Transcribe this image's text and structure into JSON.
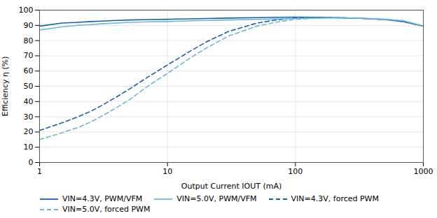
{
  "chart_data": {
    "type": "line",
    "xlabel": "Output Current IOUT (mA)",
    "ylabel": "Efficiency η (%)",
    "x": [
      1,
      1.5,
      2,
      2.5,
      3,
      4,
      5,
      7,
      10,
      15,
      20,
      30,
      50,
      70,
      100,
      150,
      200,
      300,
      500,
      700,
      1000
    ],
    "series": [
      {
        "name": "VIN=4.3V, PWM/VFM",
        "color": "#1a5fa8",
        "line_style": "solid",
        "values": [
          89.5,
          91.5,
          92.0,
          92.5,
          92.8,
          93.2,
          93.5,
          93.8,
          94.0,
          94.3,
          94.5,
          94.8,
          95.1,
          95.3,
          95.4,
          95.3,
          95.1,
          94.7,
          93.8,
          92.5,
          89.5
        ]
      },
      {
        "name": "VIN=5.0V, PWM/VFM",
        "color": "#6ab8d8",
        "line_style": "solid",
        "values": [
          87.0,
          89.0,
          90.0,
          90.5,
          91.0,
          91.5,
          92.0,
          92.3,
          92.5,
          93.0,
          93.2,
          93.5,
          93.9,
          94.2,
          94.5,
          94.8,
          95.0,
          94.8,
          94.0,
          93.0,
          89.5
        ]
      },
      {
        "name": "VIN=4.3V, forced PWM",
        "color": "#1a5fa8",
        "line_style": "dashed",
        "values": [
          21.0,
          26.0,
          30.0,
          33.5,
          37.0,
          43.0,
          48.0,
          56.0,
          64.0,
          73.0,
          79.0,
          86.0,
          91.5,
          93.5,
          95.0,
          95.3,
          95.1,
          94.7,
          93.8,
          92.5,
          89.5
        ]
      },
      {
        "name": "VIN=5.0V, forced PWM",
        "color": "#6ab8d8",
        "line_style": "dashed",
        "values": [
          15.0,
          19.5,
          23.0,
          26.5,
          30.0,
          36.0,
          41.0,
          50.0,
          58.5,
          68.5,
          75.0,
          83.0,
          89.5,
          92.0,
          94.0,
          94.8,
          95.0,
          94.8,
          94.0,
          93.0,
          89.5
        ]
      }
    ],
    "xlim": [
      1,
      1000
    ],
    "ylim": [
      0,
      100
    ],
    "xticks": [
      1,
      10,
      100,
      1000
    ],
    "yticks": [
      0,
      10,
      20,
      30,
      40,
      50,
      60,
      70,
      80,
      90,
      100
    ],
    "log": "x",
    "grid": true,
    "legend": "lower left"
  }
}
